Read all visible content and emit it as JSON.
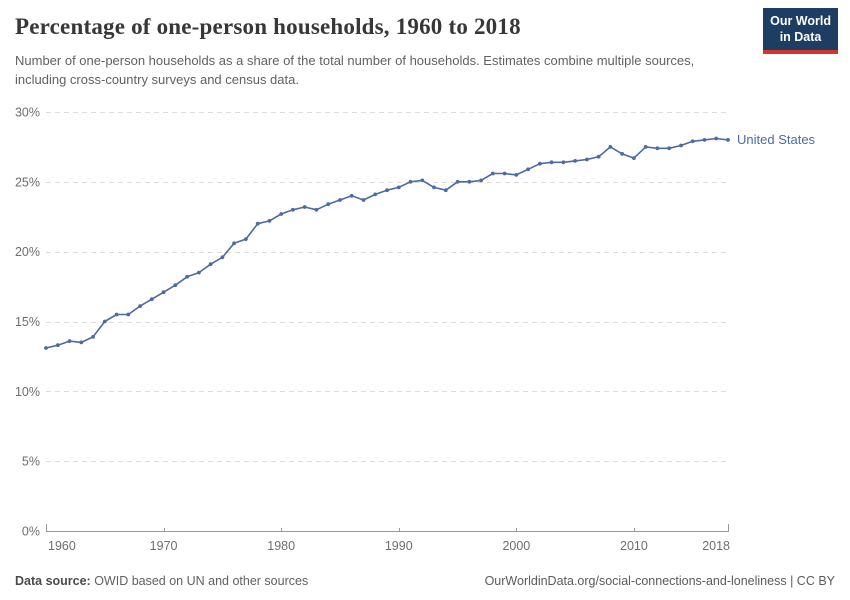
{
  "header": {
    "title": "Percentage of one-person households, 1960 to 2018",
    "subtitle": "Number of one-person households as a share of the total number of households. Estimates combine multiple sources, including cross-country surveys and census data.",
    "logo": {
      "line1": "Our World",
      "line2": "in Data",
      "bg_color": "#1d3d63",
      "accent_color": "#d0362b"
    }
  },
  "chart_data": {
    "type": "line",
    "title": "Percentage of one-person households, 1960 to 2018",
    "xlabel": "",
    "ylabel": "",
    "xlim": [
      1960,
      2018
    ],
    "ylim": [
      0,
      30
    ],
    "xticks": [
      1960,
      1970,
      1980,
      1990,
      2000,
      2010,
      2018
    ],
    "xtick_labels": [
      "1960",
      "1970",
      "1980",
      "1990",
      "2000",
      "2010",
      "2018"
    ],
    "yticks": [
      0,
      5,
      10,
      15,
      20,
      25,
      30
    ],
    "ytick_labels": [
      "0%",
      "5%",
      "10%",
      "15%",
      "20%",
      "25%",
      "30%"
    ],
    "grid": "horizontal-dashed",
    "legend_position": "end-of-line-label",
    "series": [
      {
        "name": "United States",
        "color": "#4c6ba3",
        "x": [
          1960,
          1961,
          1962,
          1963,
          1964,
          1965,
          1966,
          1967,
          1968,
          1969,
          1970,
          1971,
          1972,
          1973,
          1974,
          1975,
          1976,
          1977,
          1978,
          1979,
          1980,
          1981,
          1982,
          1983,
          1984,
          1985,
          1986,
          1987,
          1988,
          1989,
          1990,
          1991,
          1992,
          1993,
          1994,
          1995,
          1996,
          1997,
          1998,
          1999,
          2000,
          2001,
          2002,
          2003,
          2004,
          2005,
          2006,
          2007,
          2008,
          2009,
          2010,
          2011,
          2012,
          2013,
          2014,
          2015,
          2016,
          2017,
          2018
        ],
        "values": [
          13.1,
          13.3,
          13.6,
          13.5,
          13.9,
          15.0,
          15.5,
          15.5,
          16.1,
          16.6,
          17.1,
          17.6,
          18.2,
          18.5,
          19.1,
          19.6,
          20.6,
          20.9,
          22.0,
          22.2,
          22.7,
          23.0,
          23.2,
          23.0,
          23.4,
          23.7,
          24.0,
          23.7,
          24.1,
          24.4,
          24.6,
          25.0,
          25.1,
          24.6,
          24.4,
          25.0,
          25.0,
          25.1,
          25.6,
          25.6,
          25.5,
          25.9,
          26.3,
          26.4,
          26.4,
          26.5,
          26.6,
          26.8,
          27.5,
          27.0,
          26.7,
          27.5,
          27.4,
          27.4,
          27.6,
          27.9,
          28.0,
          28.1,
          28.0
        ]
      }
    ]
  },
  "footer": {
    "datasource_label": "Data source:",
    "datasource_text": " OWID based on UN and other sources",
    "link_text": "OurWorldinData.org/social-connections-and-loneliness",
    "license_text": " | CC BY"
  }
}
